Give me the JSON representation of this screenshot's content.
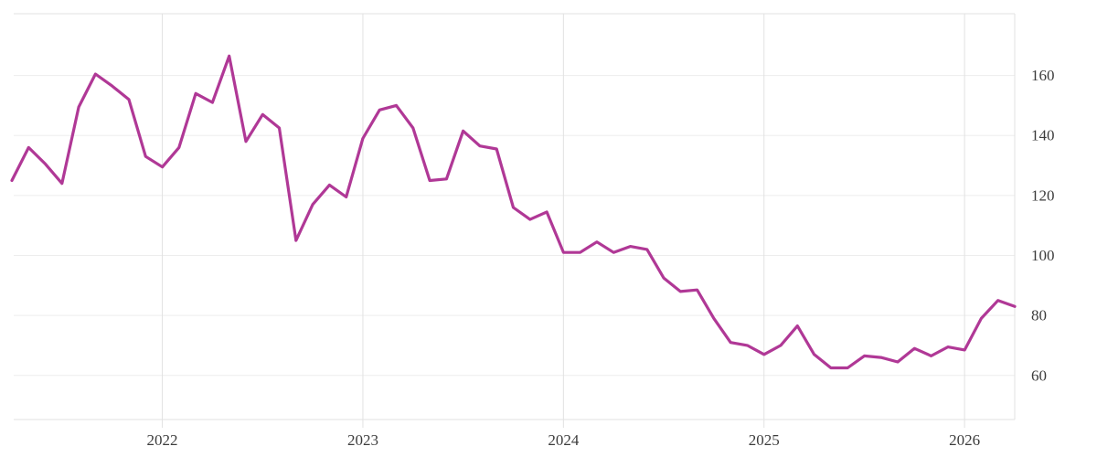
{
  "chart_data": {
    "type": "line",
    "title": "",
    "legend": "none",
    "grid": "on",
    "background_color": "#ffffff",
    "gridline_color": "#ededed",
    "axis_line_color": "#e2e2e2",
    "tick_label_color": "#3c3c3c",
    "x_range": [
      "2021-04",
      "2026-04"
    ],
    "ylim": [
      45.4,
      180.7
    ],
    "y_ticks": [
      160,
      140,
      120,
      100,
      80,
      60
    ],
    "x_ticks": [
      "2022",
      "2023",
      "2024",
      "2025",
      "2026"
    ],
    "series": [
      {
        "name": "value",
        "color": "#B03896",
        "line_width": 3.2,
        "x": [
          "2021-04",
          "2021-05",
          "2021-06",
          "2021-07",
          "2021-08",
          "2021-09",
          "2021-10",
          "2021-11",
          "2021-12",
          "2022-01",
          "2022-02",
          "2022-03",
          "2022-04",
          "2022-05",
          "2022-06",
          "2022-07",
          "2022-08",
          "2022-09",
          "2022-10",
          "2022-11",
          "2022-12",
          "2023-01",
          "2023-02",
          "2023-03",
          "2023-04",
          "2023-05",
          "2023-06",
          "2023-07",
          "2023-08",
          "2023-09",
          "2023-10",
          "2023-11",
          "2023-12",
          "2024-01",
          "2024-02",
          "2024-03",
          "2024-04",
          "2024-05",
          "2024-06",
          "2024-07",
          "2024-08",
          "2024-09",
          "2024-10",
          "2024-11",
          "2024-12",
          "2025-01",
          "2025-02",
          "2025-03",
          "2025-04",
          "2025-05",
          "2025-06",
          "2025-07",
          "2025-08",
          "2025-09",
          "2025-10",
          "2025-11",
          "2025-12",
          "2026-01",
          "2026-02",
          "2026-03",
          "2026-04"
        ],
        "values": [
          125,
          136,
          130.5,
          124,
          149.5,
          160.5,
          156.5,
          152,
          133,
          129.5,
          136,
          154,
          151,
          166.5,
          138,
          147,
          142.5,
          105,
          117,
          123.5,
          119.5,
          139,
          148.5,
          150,
          142.5,
          125,
          125.5,
          141.5,
          136.5,
          135.5,
          116,
          112,
          114.5,
          101,
          101,
          104.5,
          101,
          103,
          102,
          92.5,
          88,
          88.5,
          79,
          71,
          70,
          67,
          70,
          76.5,
          67,
          62.5,
          62.5,
          66.5,
          66,
          64.5,
          69,
          66.5,
          69.5,
          68.5,
          79,
          85,
          83
        ]
      }
    ]
  }
}
